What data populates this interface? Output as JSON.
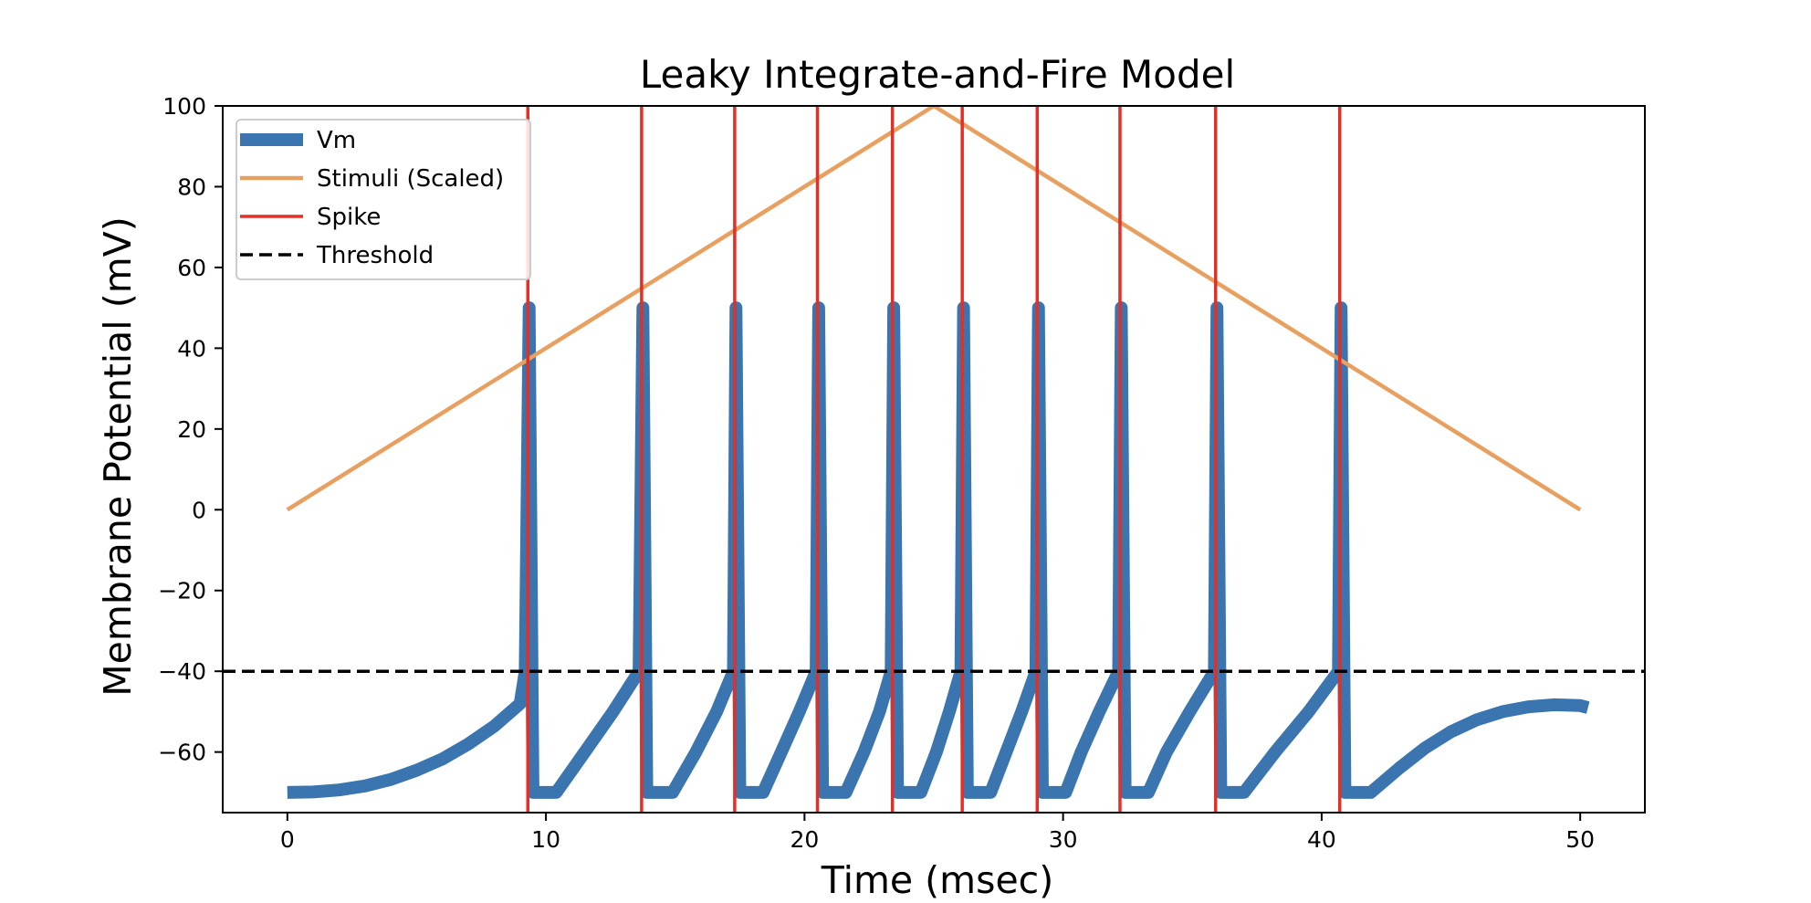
{
  "chart_data": {
    "type": "line",
    "title": "Leaky Integrate-and-Fire Model",
    "xlabel": "Time (msec)",
    "ylabel": "Membrane Potential (mV)",
    "xlim": [
      -2.5,
      52.5
    ],
    "ylim": [
      -75,
      100
    ],
    "xticks": [
      0,
      10,
      20,
      30,
      40,
      50
    ],
    "yticks": [
      -60,
      -40,
      -20,
      0,
      20,
      40,
      60,
      80,
      100
    ],
    "grid": false,
    "legend_position": "top-left",
    "threshold": -40,
    "rest_potential": -70,
    "spike_peak": 50,
    "spike_times": [
      9.3,
      13.7,
      17.3,
      20.5,
      23.4,
      26.1,
      29.0,
      32.2,
      35.9,
      40.7
    ],
    "series": [
      {
        "name": "Vm",
        "color": "#3b75af",
        "x": [
          0,
          1,
          2,
          3,
          4,
          5,
          6,
          7,
          8,
          9,
          9.2,
          9.35,
          9.5,
          10.4,
          11.5,
          12.6,
          13.6,
          13.75,
          13.9,
          14.9,
          15.8,
          16.6,
          17.25,
          17.35,
          17.5,
          18.4,
          19.1,
          19.8,
          20.45,
          20.55,
          20.7,
          21.6,
          22.3,
          22.9,
          23.35,
          23.45,
          23.6,
          24.5,
          25.1,
          25.6,
          26.05,
          26.15,
          26.3,
          27.2,
          27.8,
          28.4,
          28.95,
          29.05,
          29.2,
          30.1,
          30.7,
          31.4,
          32.15,
          32.25,
          32.4,
          33.3,
          34.0,
          34.9,
          35.85,
          35.95,
          36.1,
          37.0,
          38.2,
          39.5,
          40.65,
          40.75,
          40.9,
          41.9,
          43,
          44,
          45,
          46,
          47,
          48,
          49,
          50,
          50.3
        ],
        "y": [
          -70,
          -69.9,
          -69.4,
          -68.4,
          -66.8,
          -64.5,
          -61.7,
          -58.0,
          -53.6,
          -48.0,
          -40,
          50,
          -70,
          -70,
          -60,
          -50,
          -40,
          50,
          -70,
          -70,
          -60,
          -50,
          -40,
          50,
          -70,
          -70,
          -60,
          -50,
          -40,
          50,
          -70,
          -70,
          -60,
          -50,
          -40,
          50,
          -70,
          -70,
          -60,
          -50,
          -40,
          50,
          -70,
          -70,
          -60,
          -50,
          -40,
          50,
          -70,
          -70,
          -60,
          -50,
          -40,
          50,
          -70,
          -70,
          -60,
          -50,
          -40,
          50,
          -70,
          -70,
          -60,
          -50,
          -40,
          50,
          -70,
          -70,
          -64.0,
          -59.0,
          -55.0,
          -52.0,
          -50.0,
          -48.8,
          -48.3,
          -48.5,
          -49.0
        ]
      },
      {
        "name": "Stimuli (Scaled)",
        "color": "#e8a060",
        "x": [
          0,
          25,
          50
        ],
        "y": [
          0,
          100,
          0
        ]
      },
      {
        "name": "Spike",
        "color": "#e03028"
      },
      {
        "name": "Threshold",
        "color": "#000000"
      }
    ]
  }
}
